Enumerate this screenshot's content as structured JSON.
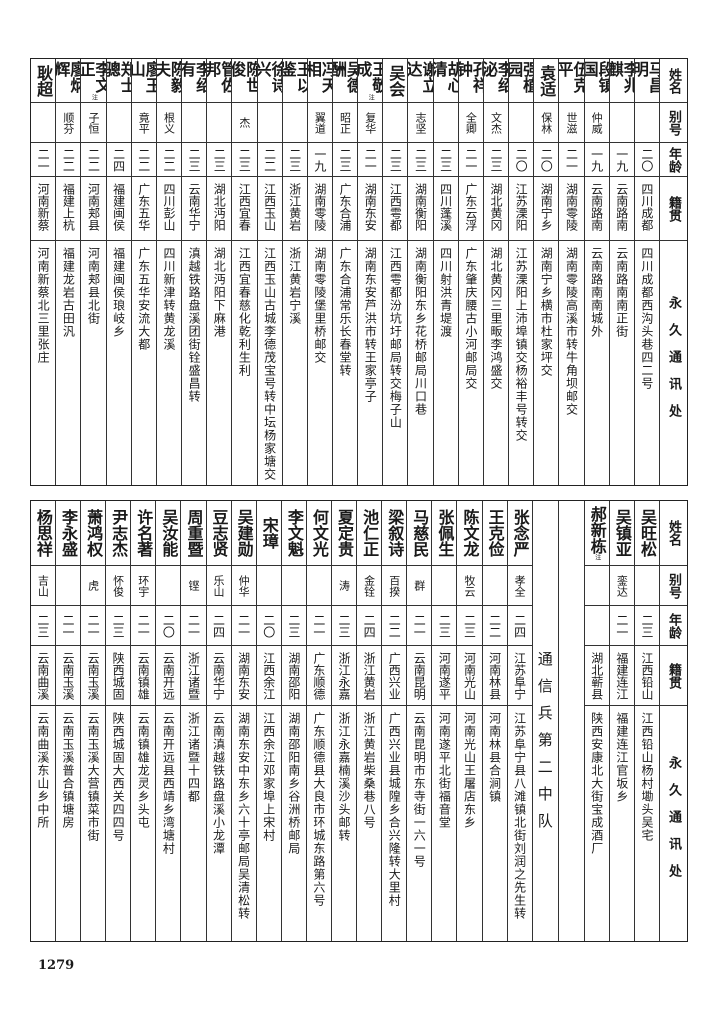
{
  "header": {
    "name": "姓名",
    "alias": "别号",
    "age": "年龄",
    "native": "籍贯",
    "address": "永久通讯处"
  },
  "top": {
    "rows": [
      {
        "name": "马昌明",
        "alias": "",
        "age": "二〇",
        "native": "四川成都",
        "address": "四川成都西沟头巷四二号"
      },
      {
        "name": "李兆麒",
        "alias": "",
        "age": "一九",
        "native": "云南路南",
        "address": "云南路南南正街"
      },
      {
        "name": "段镇国",
        "alias": "仲威",
        "age": "一九",
        "native": "云南路南",
        "address": "云南路南南城外"
      },
      {
        "name": "伍克平",
        "alias": "世滋",
        "age": "二一",
        "native": "湖南零陵",
        "address": "湖南零陵高溪市转牛角坝邮交"
      },
      {
        "name": "袁适",
        "alias": "保林",
        "age": "二〇",
        "native": "湖南宁乡",
        "address": "湖南宁乡横市杜家坪交"
      },
      {
        "name": "强植园",
        "alias": "",
        "age": "二〇",
        "native": "江苏溧阳",
        "address": "江苏溧阳上沛埠镇交杨裕丰号转交"
      },
      {
        "name": "李绍泌",
        "alias": "文杰",
        "age": "二三",
        "native": "湖北黄冈",
        "address": "湖北黄冈三里畈李鸿盛交"
      },
      {
        "name": "孔祥钟",
        "alias": "全卿",
        "age": "二一",
        "native": "广东云浮",
        "address": "广东肇庆腰古小河邮局交"
      },
      {
        "name": "胡心清",
        "alias": "",
        "age": "二三",
        "native": "四川蓬溪",
        "address": "四川射洪青堤渡"
      },
      {
        "name": "谢立达",
        "alias": "志坚",
        "age": "二三",
        "native": "湖南衡阳",
        "address": "湖南衡阳东乡花桥邮局川口巷"
      },
      {
        "name": "吴会",
        "alias": "",
        "age": "二三",
        "native": "江西雩都",
        "address": "江西雩都汾坑圩邮局转交梅子山"
      },
      {
        "name": "王敬成",
        "note": "注",
        "alias": "复华",
        "age": "二一",
        "native": "湖南东安",
        "address": "湖南东安芦洪市转王家亭子"
      },
      {
        "name": "吴德酬",
        "alias": "昭正",
        "age": "二三",
        "native": "广东合浦",
        "address": "广东合浦常乐长春堂转"
      },
      {
        "name": "冯天相",
        "alias": "翼道",
        "age": "一九",
        "native": "湖南零陵",
        "address": "湖南零陵堡里桥邮交"
      },
      {
        "name": "王以鉴",
        "alias": "",
        "age": "二三",
        "native": "浙江黄岩",
        "address": "浙江黄岩宁溪"
      },
      {
        "name": "徐诗兴",
        "alias": "",
        "age": "二二",
        "native": "江西玉山",
        "address": "江西玉山古城李德茂宝号转中坛杨家塘交"
      },
      {
        "name": "陈世俊",
        "alias": "杰",
        "age": "二三",
        "native": "江西宜春",
        "address": "江西宜春慈化乾利生利"
      },
      {
        "name": "管佐邦",
        "alias": "",
        "age": "二三",
        "native": "湖北沔阳",
        "address": "湖北沔阳下麻港"
      },
      {
        "name": "李绍有",
        "alias": "",
        "age": "二三",
        "native": "云南华宁",
        "address": "滇越铁路盘溪团街铨盛昌转"
      },
      {
        "name": "陈毅夫",
        "alias": "根义",
        "age": "二二",
        "native": "四川彭山",
        "address": "四川新津转黄龙溪"
      },
      {
        "name": "廖玉山",
        "alias": "竟平",
        "age": "二二",
        "native": "广东五华",
        "address": "广东五华安流大都"
      },
      {
        "name": "郑士骢",
        "alias": "",
        "age": "二四",
        "native": "福建闽侯",
        "address": "福建闽侯琅岐乡"
      },
      {
        "name": "李文正",
        "note": "注",
        "alias": "子恒",
        "age": "二二",
        "native": "河南郏县",
        "address": "河南郏县北街"
      },
      {
        "name": "廖炳辉",
        "alias": "顺芬",
        "age": "二二",
        "native": "福建上杭",
        "address": "福建龙岩古田汎"
      },
      {
        "name": "耿超",
        "alias": "",
        "age": "二一",
        "native": "河南新蔡",
        "address": "河南新蔡北三里张庄"
      }
    ]
  },
  "bottom": {
    "section_title": "通信兵第二中队",
    "rows_before": [
      {
        "name": "吴旺松",
        "alias": "",
        "age": "二三",
        "native": "江西铅山",
        "address": "江西铅山杨村墈头吴宅"
      },
      {
        "name": "吴镇亚",
        "alias": "銮达",
        "age": "二一",
        "native": "福建连江",
        "address": "福建连江官坂乡"
      },
      {
        "name": "郝新栋",
        "note": "注",
        "alias": "",
        "age": "",
        "native": "湖北蕲县",
        "address": "陕西安康北大街宝成酒厂"
      }
    ],
    "rows_after": [
      {
        "name": "张念严",
        "alias": "孝全",
        "age": "二四",
        "native": "江苏阜宁",
        "address": "江苏阜宁县八滩镇北街刘润之先生转"
      },
      {
        "name": "王克俭",
        "alias": "",
        "age": "二二",
        "native": "河南林县",
        "address": "河南林县合涧镇"
      },
      {
        "name": "陈文龙",
        "alias": "牧云",
        "age": "二三",
        "native": "河南光山",
        "address": "河南光山王屠店东乡"
      },
      {
        "name": "张佩生",
        "alias": "",
        "age": "二三",
        "native": "河南遂平",
        "address": "河南遂平北街福音堂"
      },
      {
        "name": "马慈民",
        "alias": "群",
        "age": "二一",
        "native": "云南昆明",
        "address": "云南昆明市东寺街一六一号"
      },
      {
        "name": "梁叙诗",
        "alias": "百揆",
        "age": "二二",
        "native": "广西兴业",
        "address": "广西兴业县城隍乡合兴隆转大里村"
      },
      {
        "name": "池仁正",
        "alias": "金铨",
        "age": "二四",
        "native": "浙江黄岩",
        "address": "浙江黄岩柴桑巷八号"
      },
      {
        "name": "夏定贵",
        "alias": "涛",
        "age": "二三",
        "native": "浙江永嘉",
        "address": "浙江永嘉楠溪沙头邮转"
      },
      {
        "name": "何文光",
        "alias": "",
        "age": "二一",
        "native": "广东顺德",
        "address": "广东顺德县大良市环城东路第六号"
      },
      {
        "name": "李文魁",
        "alias": "",
        "age": "二三",
        "native": "湖南邵阳",
        "address": "湖南邵阳南乡谷洲桥邮局"
      },
      {
        "name": "宋璋",
        "alias": "",
        "age": "二〇",
        "native": "江西余江",
        "address": "江西余江邓家埠上宋村"
      },
      {
        "name": "吴建勋",
        "alias": "仲华",
        "age": "二一",
        "native": "湖南东安",
        "address": "湖南东安中东乡六十亭邮局吴清松转"
      },
      {
        "name": "豆志贤",
        "alias": "乐山",
        "age": "二四",
        "native": "云南华宁",
        "address": "云南滇越铁路盘溪小龙潭"
      },
      {
        "name": "周重暨",
        "alias": "铿",
        "age": "二一",
        "native": "浙江诸暨",
        "address": "浙江诸暨十四都"
      },
      {
        "name": "吴汝能",
        "alias": "",
        "age": "二〇",
        "native": "云南开远",
        "address": "云南开远县西靖乡湾塘村"
      },
      {
        "name": "许名著",
        "alias": "环宇",
        "age": "二一",
        "native": "云南镇雄",
        "address": "云南镇雄龙灵乡头屯"
      },
      {
        "name": "尹志杰",
        "alias": "怀俊",
        "age": "二三",
        "native": "陕西城固",
        "address": "陕西城固大西关四四号"
      },
      {
        "name": "萧鸿权",
        "alias": "虎",
        "age": "二一",
        "native": "云南玉溪",
        "address": "云南玉溪大营镇菜市街"
      },
      {
        "name": "李永盛",
        "alias": "",
        "age": "二一",
        "native": "云南玉溪",
        "address": "云南玉溪普合镇塘房"
      },
      {
        "name": "杨思祥",
        "alias": "吉山",
        "age": "二三",
        "native": "云南曲溪",
        "address": "云南曲溪东山乡中所"
      }
    ]
  },
  "page_number": "1279"
}
